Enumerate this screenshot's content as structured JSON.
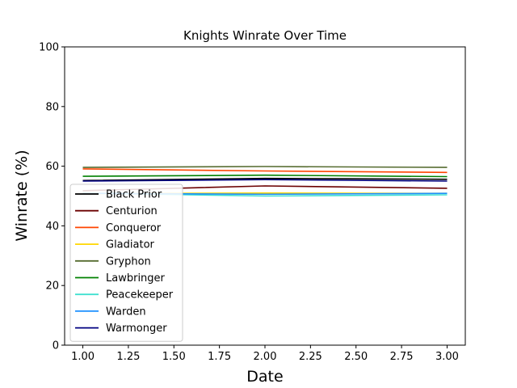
{
  "chart_data": {
    "type": "line",
    "title": "Knights Winrate Over Time",
    "xlabel": "Date",
    "ylabel": "Winrate (%)",
    "xlim": [
      0.9,
      3.1
    ],
    "ylim": [
      0,
      100
    ],
    "xticks": [
      "1.00",
      "1.25",
      "1.50",
      "1.75",
      "2.00",
      "2.25",
      "2.50",
      "2.75",
      "3.00"
    ],
    "yticks": [
      "0",
      "20",
      "40",
      "60",
      "80",
      "100"
    ],
    "grid": false,
    "legend_position": "lower-left",
    "x": [
      1,
      2,
      3
    ],
    "series": [
      {
        "name": "Black Prior",
        "color": "#000000",
        "values": [
          55.2,
          55.9,
          55.6
        ]
      },
      {
        "name": "Centurion",
        "color": "#6b0000",
        "values": [
          51.8,
          53.4,
          52.6
        ]
      },
      {
        "name": "Conqueror",
        "color": "#ff4500",
        "values": [
          59.1,
          58.4,
          57.9
        ]
      },
      {
        "name": "Gladiator",
        "color": "#ffd700",
        "values": [
          50.8,
          51.0,
          50.9
        ]
      },
      {
        "name": "Gryphon",
        "color": "#556b2f",
        "values": [
          59.6,
          59.9,
          59.6
        ]
      },
      {
        "name": "Lawbringer",
        "color": "#008000",
        "values": [
          56.6,
          57.0,
          56.5
        ]
      },
      {
        "name": "Peacekeeper",
        "color": "#40e0d0",
        "values": [
          51.0,
          50.0,
          50.4
        ]
      },
      {
        "name": "Warden",
        "color": "#1e90ff",
        "values": [
          50.9,
          50.6,
          50.9
        ]
      },
      {
        "name": "Warmonger",
        "color": "#000080",
        "values": [
          55.0,
          55.5,
          55.0
        ]
      }
    ]
  }
}
